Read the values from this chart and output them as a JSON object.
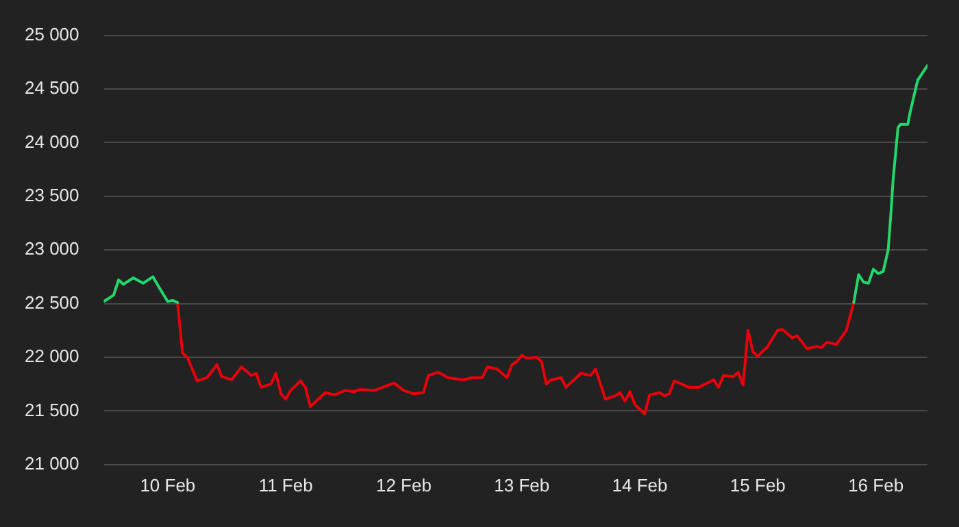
{
  "chart_data": {
    "type": "line",
    "x": [
      "--02-09T11:00",
      "--02-09T13:00",
      "--02-09T14:00",
      "--02-09T15:00",
      "--02-09T17:00",
      "--02-09T19:00",
      "--02-09T21:00",
      "--02-09T22:00",
      "--02-10T00:00",
      "--02-10T01:00",
      "--02-10T02:00",
      "--02-10T03:00",
      "--02-10T04:00",
      "--02-10T06:00",
      "--02-10T08:00",
      "--02-10T10:00",
      "--02-10T11:00",
      "--02-10T13:00",
      "--02-10T15:00",
      "--02-10T17:00",
      "--02-10T18:00",
      "--02-10T19:00",
      "--02-10T21:00",
      "--02-10T22:00",
      "--02-10T23:00",
      "--02-11T00:00",
      "--02-11T01:00",
      "--02-11T03:00",
      "--02-11T04:00",
      "--02-11T05:00",
      "--02-11T08:00",
      "--02-11T10:00",
      "--02-11T12:00",
      "--02-11T14:00",
      "--02-11T15:00",
      "--02-11T18:00",
      "--02-11T22:00",
      "--02-12T00:00",
      "--02-12T02:00",
      "--02-12T04:00",
      "--02-12T05:00",
      "--02-12T07:00",
      "--02-12T09:00",
      "--02-12T12:00",
      "--02-12T14:00",
      "--02-12T16:00",
      "--02-12T17:00",
      "--02-12T19:00",
      "--02-12T21:00",
      "--02-12T22:00",
      "--02-12T23:00",
      "--02-13T00:00",
      "--02-13T01:00",
      "--02-13T03:00",
      "--02-13T04:00",
      "--02-13T05:00",
      "--02-13T06:00",
      "--02-13T08:00",
      "--02-13T09:00",
      "--02-13T12:00",
      "--02-13T14:00",
      "--02-13T15:00",
      "--02-13T17:00",
      "--02-13T19:00",
      "--02-13T20:00",
      "--02-13T21:00",
      "--02-13T22:00",
      "--02-13T23:00",
      "--02-14T01:00",
      "--02-14T02:00",
      "--02-14T04:00",
      "--02-14T05:00",
      "--02-14T06:00",
      "--02-14T07:00",
      "--02-14T10:00",
      "--02-14T12:00",
      "--02-14T15:00",
      "--02-14T16:00",
      "--02-14T17:00",
      "--02-14T19:00",
      "--02-14T20:00",
      "--02-14T21:00",
      "--02-14T22:00",
      "--02-14T23:00",
      "--02-15T00:00",
      "--02-15T02:00",
      "--02-15T04:00",
      "--02-15T05:00",
      "--02-15T07:00",
      "--02-15T08:00",
      "--02-15T10:00",
      "--02-15T12:00",
      "--02-15T13:00",
      "--02-15T14:00",
      "--02-15T16:00",
      "--02-15T18:00",
      "--02-15T19:30",
      "--02-15T20:30",
      "--02-15T21:30",
      "--02-15T22:30",
      "--02-15T23:30",
      "--02-16T00:30",
      "--02-16T01:30",
      "--02-16T02:30",
      "--02-16T03:00",
      "--02-16T03:30",
      "--02-16T04:30",
      "--02-16T05:00",
      "--02-16T06:30",
      "--02-16T07:00",
      "--02-16T08:30",
      "--02-16T10:30"
    ],
    "series": [
      {
        "color": "#22d86c",
        "values": [
          22520,
          22580,
          22720,
          22680,
          22740,
          22690,
          22750,
          22670,
          22520,
          22530,
          22510,
          null,
          null,
          null,
          null,
          null,
          null,
          null,
          null,
          null,
          null,
          null,
          null,
          null,
          null,
          null,
          null,
          null,
          null,
          null,
          null,
          null,
          null,
          null,
          null,
          null,
          null,
          null,
          null,
          null,
          null,
          null,
          null,
          null,
          null,
          null,
          null,
          null,
          null,
          null,
          null,
          null,
          null,
          null,
          null,
          null,
          null,
          null,
          null,
          null,
          null,
          null,
          null,
          null,
          null,
          null,
          null,
          null,
          null,
          null,
          null,
          null,
          null,
          null,
          null,
          null,
          null,
          null,
          null,
          null,
          null,
          null,
          null,
          null,
          null,
          null,
          null,
          null,
          null,
          null,
          null,
          null,
          null,
          null,
          null,
          null,
          22510,
          22770,
          22700,
          22690,
          22820,
          22780,
          22800,
          23000,
          23300,
          23650,
          24140,
          24170,
          24170,
          24290,
          24580,
          24720
        ]
      },
      {
        "color": "#e8000b",
        "values": [
          null,
          null,
          null,
          null,
          null,
          null,
          null,
          null,
          null,
          null,
          22510,
          22040,
          22000,
          21780,
          21810,
          21930,
          21820,
          21790,
          21910,
          21830,
          21850,
          21720,
          21750,
          21850,
          21660,
          21610,
          21690,
          21780,
          21720,
          21540,
          21670,
          21650,
          21690,
          21680,
          21700,
          21690,
          21760,
          21690,
          21660,
          21670,
          21830,
          21860,
          21810,
          21790,
          21810,
          21810,
          21910,
          21890,
          21810,
          21930,
          21960,
          22020,
          21990,
          22000,
          21960,
          21750,
          21790,
          21810,
          21720,
          21850,
          21830,
          21890,
          21610,
          21640,
          21670,
          21590,
          21680,
          21560,
          21470,
          21650,
          21670,
          21640,
          21660,
          21780,
          21720,
          21720,
          21790,
          21720,
          21830,
          21820,
          21860,
          21740,
          22250,
          22050,
          22010,
          22100,
          22250,
          22260,
          22180,
          22200,
          22080,
          22100,
          22090,
          22140,
          22120,
          22250,
          22510,
          null,
          null,
          null,
          null,
          null,
          null,
          null,
          null,
          null,
          null,
          null,
          null,
          null,
          null,
          null
        ]
      }
    ],
    "xlim": [
      "--02-09T11:00",
      "--02-16T10:30"
    ],
    "xticks": [
      {
        "value": "--02-10",
        "label": "10 Feb"
      },
      {
        "value": "--02-11",
        "label": "11 Feb"
      },
      {
        "value": "--02-12",
        "label": "12 Feb"
      },
      {
        "value": "--02-13",
        "label": "13 Feb"
      },
      {
        "value": "--02-14",
        "label": "14 Feb"
      },
      {
        "value": "--02-15",
        "label": "15 Feb"
      },
      {
        "value": "--02-16",
        "label": "16 Feb"
      }
    ],
    "ylim": [
      21000,
      25000
    ],
    "yticks": [
      {
        "value": 21000,
        "label": "21 000"
      },
      {
        "value": 21500,
        "label": "21 500"
      },
      {
        "value": 22000,
        "label": "22 000"
      },
      {
        "value": 22500,
        "label": "22 500"
      },
      {
        "value": 23000,
        "label": "23 000"
      },
      {
        "value": 23500,
        "label": "23 500"
      },
      {
        "value": 24000,
        "label": "24 000"
      },
      {
        "value": 24500,
        "label": "24 500"
      },
      {
        "value": 25000,
        "label": "25 000"
      }
    ],
    "grid": "y",
    "legend": false,
    "marker": "none",
    "line_style": "solid"
  }
}
